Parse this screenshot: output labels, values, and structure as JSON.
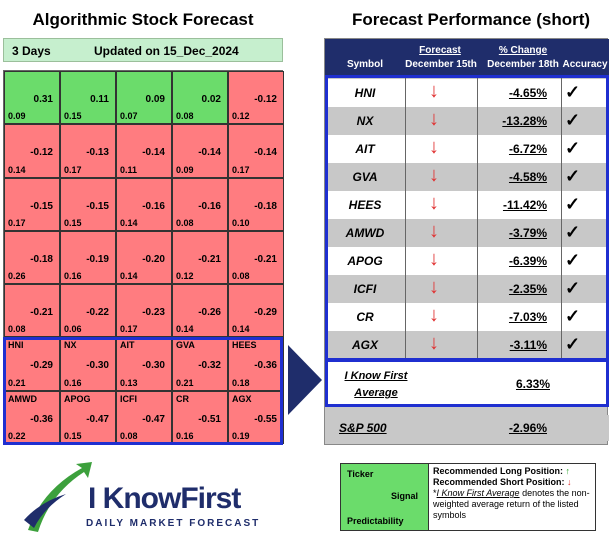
{
  "left": {
    "title": "Algorithmic Stock Forecast",
    "days": "3 Days",
    "updated": "Updated on 15_Dec_2024",
    "grid": [
      [
        {
          "ticker": "",
          "signal": "0.31",
          "pred": "0.09",
          "pos": true
        },
        {
          "ticker": "",
          "signal": "0.11",
          "pred": "0.15",
          "pos": true
        },
        {
          "ticker": "",
          "signal": "0.09",
          "pred": "0.07",
          "pos": true
        },
        {
          "ticker": "",
          "signal": "0.02",
          "pred": "0.08",
          "pos": true
        },
        {
          "ticker": "",
          "signal": "-0.12",
          "pred": "0.12",
          "pos": false
        }
      ],
      [
        {
          "ticker": "",
          "signal": "-0.12",
          "pred": "0.14",
          "pos": false
        },
        {
          "ticker": "",
          "signal": "-0.13",
          "pred": "0.17",
          "pos": false
        },
        {
          "ticker": "",
          "signal": "-0.14",
          "pred": "0.11",
          "pos": false
        },
        {
          "ticker": "",
          "signal": "-0.14",
          "pred": "0.09",
          "pos": false
        },
        {
          "ticker": "",
          "signal": "-0.14",
          "pred": "0.17",
          "pos": false
        }
      ],
      [
        {
          "ticker": "",
          "signal": "-0.15",
          "pred": "0.17",
          "pos": false
        },
        {
          "ticker": "",
          "signal": "-0.15",
          "pred": "0.15",
          "pos": false
        },
        {
          "ticker": "",
          "signal": "-0.16",
          "pred": "0.14",
          "pos": false
        },
        {
          "ticker": "",
          "signal": "-0.16",
          "pred": "0.08",
          "pos": false
        },
        {
          "ticker": "",
          "signal": "-0.18",
          "pred": "0.10",
          "pos": false
        }
      ],
      [
        {
          "ticker": "",
          "signal": "-0.18",
          "pred": "0.26",
          "pos": false
        },
        {
          "ticker": "",
          "signal": "-0.19",
          "pred": "0.16",
          "pos": false
        },
        {
          "ticker": "",
          "signal": "-0.20",
          "pred": "0.14",
          "pos": false
        },
        {
          "ticker": "",
          "signal": "-0.21",
          "pred": "0.12",
          "pos": false
        },
        {
          "ticker": "",
          "signal": "-0.21",
          "pred": "0.08",
          "pos": false
        }
      ],
      [
        {
          "ticker": "",
          "signal": "-0.21",
          "pred": "0.08",
          "pos": false
        },
        {
          "ticker": "",
          "signal": "-0.22",
          "pred": "0.06",
          "pos": false
        },
        {
          "ticker": "",
          "signal": "-0.23",
          "pred": "0.17",
          "pos": false
        },
        {
          "ticker": "",
          "signal": "-0.26",
          "pred": "0.14",
          "pos": false
        },
        {
          "ticker": "",
          "signal": "-0.29",
          "pred": "0.14",
          "pos": false
        }
      ],
      [
        {
          "ticker": "HNI",
          "signal": "-0.29",
          "pred": "0.21",
          "pos": false
        },
        {
          "ticker": "NX",
          "signal": "-0.30",
          "pred": "0.16",
          "pos": false
        },
        {
          "ticker": "AIT",
          "signal": "-0.30",
          "pred": "0.13",
          "pos": false
        },
        {
          "ticker": "GVA",
          "signal": "-0.32",
          "pred": "0.21",
          "pos": false
        },
        {
          "ticker": "HEES",
          "signal": "-0.36",
          "pred": "0.18",
          "pos": false
        }
      ],
      [
        {
          "ticker": "AMWD",
          "signal": "-0.36",
          "pred": "0.22",
          "pos": false
        },
        {
          "ticker": "APOG",
          "signal": "-0.47",
          "pred": "0.15",
          "pos": false
        },
        {
          "ticker": "ICFI",
          "signal": "-0.47",
          "pred": "0.08",
          "pos": false
        },
        {
          "ticker": "CR",
          "signal": "-0.51",
          "pred": "0.16",
          "pos": false
        },
        {
          "ticker": "AGX",
          "signal": "-0.55",
          "pred": "0.19",
          "pos": false
        }
      ]
    ]
  },
  "right": {
    "title": "Forecast Performance (short)",
    "headers": {
      "symbol": "Symbol",
      "forecast": "Forecast",
      "forecast_date": "December 15th",
      "change": "% Change",
      "change_date": "December 18th",
      "accuracy": "Accuracy"
    },
    "rows": [
      {
        "symbol": "HNI",
        "change": "-4.65%"
      },
      {
        "symbol": "NX",
        "change": "-13.28%"
      },
      {
        "symbol": "AIT",
        "change": "-6.72%"
      },
      {
        "symbol": "GVA",
        "change": "-4.58%"
      },
      {
        "symbol": "HEES",
        "change": "-11.42%"
      },
      {
        "symbol": "AMWD",
        "change": "-3.79%"
      },
      {
        "symbol": "APOG",
        "change": "-6.39%"
      },
      {
        "symbol": "ICFI",
        "change": "-2.35%"
      },
      {
        "symbol": "CR",
        "change": "-7.03%"
      },
      {
        "symbol": "AGX",
        "change": "-3.11%"
      }
    ],
    "arrow_glyph": "↓",
    "check_glyph": "✓",
    "average_label_1": "I Know First",
    "average_label_2": "Average",
    "average_value": "6.33%",
    "sp_label": "S&P 500",
    "sp_value": "-2.96%"
  },
  "logo": {
    "name": "I KnowFirst",
    "tagline": "DAILY MARKET FORECAST"
  },
  "legend": {
    "ticker": "Ticker",
    "signal": "Signal",
    "predictability": "Predictability",
    "long": "Recommended Long Position:",
    "long_glyph": "↑",
    "short": "Recommended Short Position:",
    "short_glyph": "↓",
    "note_marker": "*",
    "note_link": "I Know First Average",
    "note_rest": " denotes the non-weighted average return of the listed symbols"
  },
  "colors": {
    "positive": "#6bdc6b",
    "negative": "#ff7c80",
    "navy": "#1f2d6b",
    "highlight": "#1f2fd0"
  }
}
